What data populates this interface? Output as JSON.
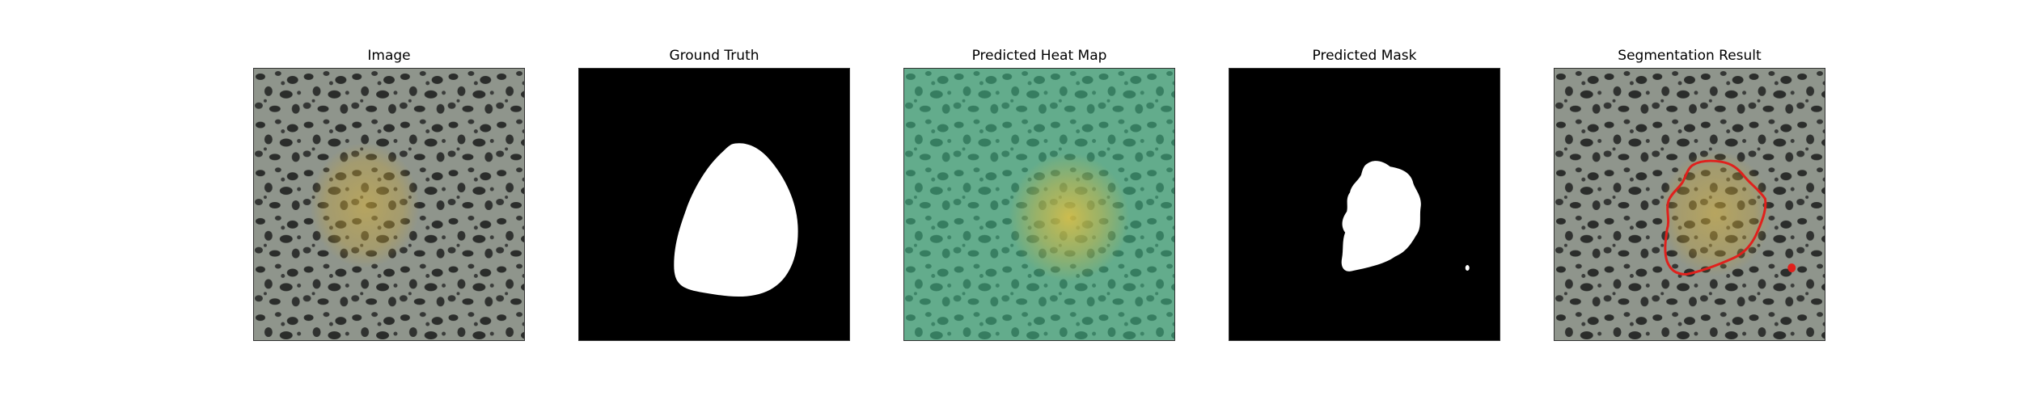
{
  "panels": [
    {
      "title": "Image"
    },
    {
      "title": "Ground Truth"
    },
    {
      "title": "Predicted Heat Map"
    },
    {
      "title": "Predicted Mask"
    },
    {
      "title": "Segmentation Result"
    }
  ],
  "colors": {
    "background": "#ffffff",
    "texture_base": "#8f958c",
    "texture_spot": "#2b2d2b",
    "lesion_tint": "#c9a63a",
    "heatmap_overlay": "#3fbf8c",
    "heatmap_hot": "#e6c23a",
    "mask_foreground": "#ffffff",
    "mask_background": "#000000",
    "contour": "#e0201c"
  }
}
